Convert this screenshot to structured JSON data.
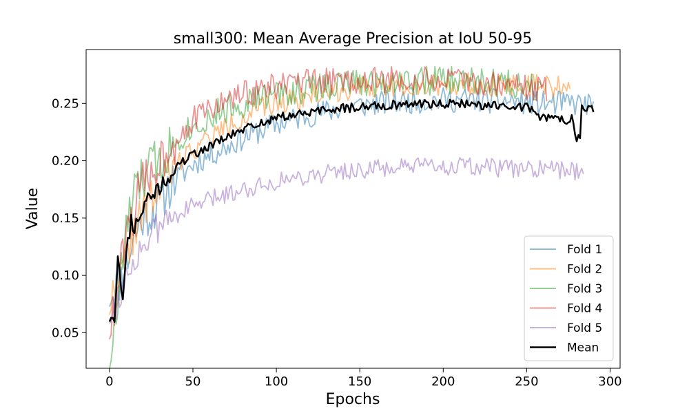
{
  "chart_data": {
    "type": "line",
    "title": "small300: Mean Average Precision at IoU 50-95",
    "xlabel": "Epochs",
    "ylabel": "Value",
    "xlim": [
      -14,
      306
    ],
    "ylim": [
      0.019,
      0.297
    ],
    "xticks": [
      0,
      50,
      100,
      150,
      200,
      250,
      300
    ],
    "yticks": [
      0.05,
      0.1,
      0.15,
      0.2,
      0.25
    ],
    "ytick_labels": [
      "0.05",
      "0.10",
      "0.15",
      "0.20",
      "0.25"
    ],
    "grid": false,
    "legend_position": "lower-right",
    "series": [
      {
        "name": "Fold 1",
        "color": "#1f77b4",
        "alpha": 0.5,
        "length": 290,
        "points": [
          [
            0,
            0.083
          ],
          [
            3,
            0.09
          ],
          [
            6,
            0.095
          ],
          [
            10,
            0.11
          ],
          [
            15,
            0.135
          ],
          [
            20,
            0.15
          ],
          [
            25,
            0.155
          ],
          [
            30,
            0.165
          ],
          [
            35,
            0.175
          ],
          [
            40,
            0.185
          ],
          [
            45,
            0.19
          ],
          [
            50,
            0.197
          ],
          [
            60,
            0.205
          ],
          [
            70,
            0.212
          ],
          [
            80,
            0.22
          ],
          [
            90,
            0.226
          ],
          [
            100,
            0.232
          ],
          [
            110,
            0.236
          ],
          [
            120,
            0.24
          ],
          [
            130,
            0.243
          ],
          [
            140,
            0.246
          ],
          [
            150,
            0.248
          ],
          [
            160,
            0.25
          ],
          [
            170,
            0.251
          ],
          [
            180,
            0.252
          ],
          [
            190,
            0.252
          ],
          [
            200,
            0.253
          ],
          [
            210,
            0.253
          ],
          [
            220,
            0.253
          ],
          [
            230,
            0.252
          ],
          [
            240,
            0.252
          ],
          [
            250,
            0.251
          ],
          [
            260,
            0.25
          ],
          [
            270,
            0.25
          ],
          [
            280,
            0.25
          ],
          [
            290,
            0.248
          ]
        ],
        "noise": 0.011,
        "seed": 11
      },
      {
        "name": "Fold 2",
        "color": "#ff7f0e",
        "alpha": 0.5,
        "length": 276,
        "points": [
          [
            0,
            0.075
          ],
          [
            3,
            0.085
          ],
          [
            6,
            0.095
          ],
          [
            10,
            0.115
          ],
          [
            15,
            0.14
          ],
          [
            20,
            0.155
          ],
          [
            25,
            0.165
          ],
          [
            30,
            0.175
          ],
          [
            35,
            0.185
          ],
          [
            40,
            0.195
          ],
          [
            45,
            0.205
          ],
          [
            50,
            0.21
          ],
          [
            60,
            0.22
          ],
          [
            70,
            0.23
          ],
          [
            80,
            0.238
          ],
          [
            90,
            0.245
          ],
          [
            100,
            0.25
          ],
          [
            110,
            0.254
          ],
          [
            120,
            0.257
          ],
          [
            130,
            0.26
          ],
          [
            140,
            0.262
          ],
          [
            150,
            0.263
          ],
          [
            160,
            0.265
          ],
          [
            170,
            0.266
          ],
          [
            180,
            0.266
          ],
          [
            190,
            0.267
          ],
          [
            200,
            0.267
          ],
          [
            210,
            0.267
          ],
          [
            220,
            0.267
          ],
          [
            230,
            0.266
          ],
          [
            240,
            0.266
          ],
          [
            250,
            0.266
          ],
          [
            260,
            0.265
          ],
          [
            270,
            0.265
          ],
          [
            276,
            0.265
          ]
        ],
        "noise": 0.01,
        "seed": 22
      },
      {
        "name": "Fold 3",
        "color": "#2ca02c",
        "alpha": 0.5,
        "length": 259,
        "points": [
          [
            0,
            0.03
          ],
          [
            3,
            0.05
          ],
          [
            6,
            0.09
          ],
          [
            10,
            0.14
          ],
          [
            15,
            0.17
          ],
          [
            20,
            0.185
          ],
          [
            25,
            0.195
          ],
          [
            30,
            0.2
          ],
          [
            35,
            0.21
          ],
          [
            40,
            0.218
          ],
          [
            45,
            0.225
          ],
          [
            50,
            0.23
          ],
          [
            60,
            0.238
          ],
          [
            70,
            0.245
          ],
          [
            80,
            0.25
          ],
          [
            90,
            0.255
          ],
          [
            100,
            0.258
          ],
          [
            110,
            0.261
          ],
          [
            120,
            0.263
          ],
          [
            130,
            0.265
          ],
          [
            140,
            0.267
          ],
          [
            150,
            0.268
          ],
          [
            160,
            0.269
          ],
          [
            170,
            0.27
          ],
          [
            180,
            0.27
          ],
          [
            190,
            0.27
          ],
          [
            200,
            0.27
          ],
          [
            210,
            0.27
          ],
          [
            220,
            0.269
          ],
          [
            230,
            0.268
          ],
          [
            240,
            0.267
          ],
          [
            250,
            0.266
          ],
          [
            259,
            0.265
          ]
        ],
        "noise": 0.013,
        "seed": 33
      },
      {
        "name": "Fold 4",
        "color": "#d62728",
        "alpha": 0.5,
        "length": 262,
        "points": [
          [
            0,
            0.055
          ],
          [
            3,
            0.065
          ],
          [
            6,
            0.1
          ],
          [
            10,
            0.13
          ],
          [
            15,
            0.16
          ],
          [
            20,
            0.18
          ],
          [
            25,
            0.19
          ],
          [
            30,
            0.2
          ],
          [
            35,
            0.21
          ],
          [
            40,
            0.22
          ],
          [
            45,
            0.228
          ],
          [
            50,
            0.235
          ],
          [
            60,
            0.245
          ],
          [
            70,
            0.252
          ],
          [
            80,
            0.258
          ],
          [
            90,
            0.262
          ],
          [
            100,
            0.265
          ],
          [
            110,
            0.267
          ],
          [
            120,
            0.268
          ],
          [
            130,
            0.269
          ],
          [
            140,
            0.27
          ],
          [
            150,
            0.27
          ],
          [
            160,
            0.27
          ],
          [
            170,
            0.27
          ],
          [
            180,
            0.27
          ],
          [
            190,
            0.27
          ],
          [
            200,
            0.27
          ],
          [
            210,
            0.269
          ],
          [
            220,
            0.268
          ],
          [
            230,
            0.267
          ],
          [
            240,
            0.266
          ],
          [
            250,
            0.264
          ],
          [
            262,
            0.262
          ]
        ],
        "noise": 0.012,
        "seed": 44
      },
      {
        "name": "Fold 5",
        "color": "#9467bd",
        "alpha": 0.5,
        "length": 284,
        "points": [
          [
            0,
            0.065
          ],
          [
            3,
            0.07
          ],
          [
            6,
            0.085
          ],
          [
            10,
            0.1
          ],
          [
            15,
            0.115
          ],
          [
            20,
            0.125
          ],
          [
            25,
            0.135
          ],
          [
            30,
            0.142
          ],
          [
            35,
            0.148
          ],
          [
            40,
            0.153
          ],
          [
            45,
            0.157
          ],
          [
            50,
            0.16
          ],
          [
            60,
            0.166
          ],
          [
            70,
            0.171
          ],
          [
            80,
            0.175
          ],
          [
            90,
            0.179
          ],
          [
            100,
            0.182
          ],
          [
            110,
            0.185
          ],
          [
            120,
            0.187
          ],
          [
            130,
            0.189
          ],
          [
            140,
            0.191
          ],
          [
            150,
            0.192
          ],
          [
            160,
            0.193
          ],
          [
            170,
            0.194
          ],
          [
            180,
            0.194
          ],
          [
            190,
            0.195
          ],
          [
            200,
            0.195
          ],
          [
            210,
            0.195
          ],
          [
            220,
            0.194
          ],
          [
            230,
            0.194
          ],
          [
            240,
            0.193
          ],
          [
            250,
            0.193
          ],
          [
            260,
            0.192
          ],
          [
            270,
            0.192
          ],
          [
            280,
            0.191
          ],
          [
            284,
            0.191
          ]
        ],
        "noise": 0.008,
        "seed": 55
      },
      {
        "name": "Mean",
        "color": "#000000",
        "alpha": 1,
        "width": 2.5,
        "length": 290,
        "points": [
          [
            0,
            0.063
          ],
          [
            2,
            0.07
          ],
          [
            3,
            0.065
          ],
          [
            5,
            0.11
          ],
          [
            8,
            0.085
          ],
          [
            10,
            0.115
          ],
          [
            13,
            0.15
          ],
          [
            15,
            0.14
          ],
          [
            18,
            0.155
          ],
          [
            20,
            0.16
          ],
          [
            25,
            0.168
          ],
          [
            30,
            0.176
          ],
          [
            35,
            0.184
          ],
          [
            40,
            0.195
          ],
          [
            45,
            0.2
          ],
          [
            50,
            0.205
          ],
          [
            60,
            0.213
          ],
          [
            70,
            0.22
          ],
          [
            80,
            0.227
          ],
          [
            90,
            0.233
          ],
          [
            100,
            0.237
          ],
          [
            110,
            0.24
          ],
          [
            120,
            0.242
          ],
          [
            130,
            0.244
          ],
          [
            140,
            0.246
          ],
          [
            150,
            0.247
          ],
          [
            160,
            0.248
          ],
          [
            170,
            0.249
          ],
          [
            180,
            0.249
          ],
          [
            190,
            0.25
          ],
          [
            200,
            0.25
          ],
          [
            210,
            0.25
          ],
          [
            220,
            0.249
          ],
          [
            230,
            0.248
          ],
          [
            240,
            0.248
          ],
          [
            250,
            0.247
          ],
          [
            255,
            0.246
          ],
          [
            258,
            0.238
          ],
          [
            262,
            0.237
          ],
          [
            270,
            0.236
          ],
          [
            278,
            0.236
          ],
          [
            279,
            0.219
          ],
          [
            282,
            0.219
          ],
          [
            283,
            0.247
          ],
          [
            286,
            0.246
          ],
          [
            290,
            0.246
          ]
        ],
        "noise": 0.004,
        "seed": 66
      }
    ]
  }
}
